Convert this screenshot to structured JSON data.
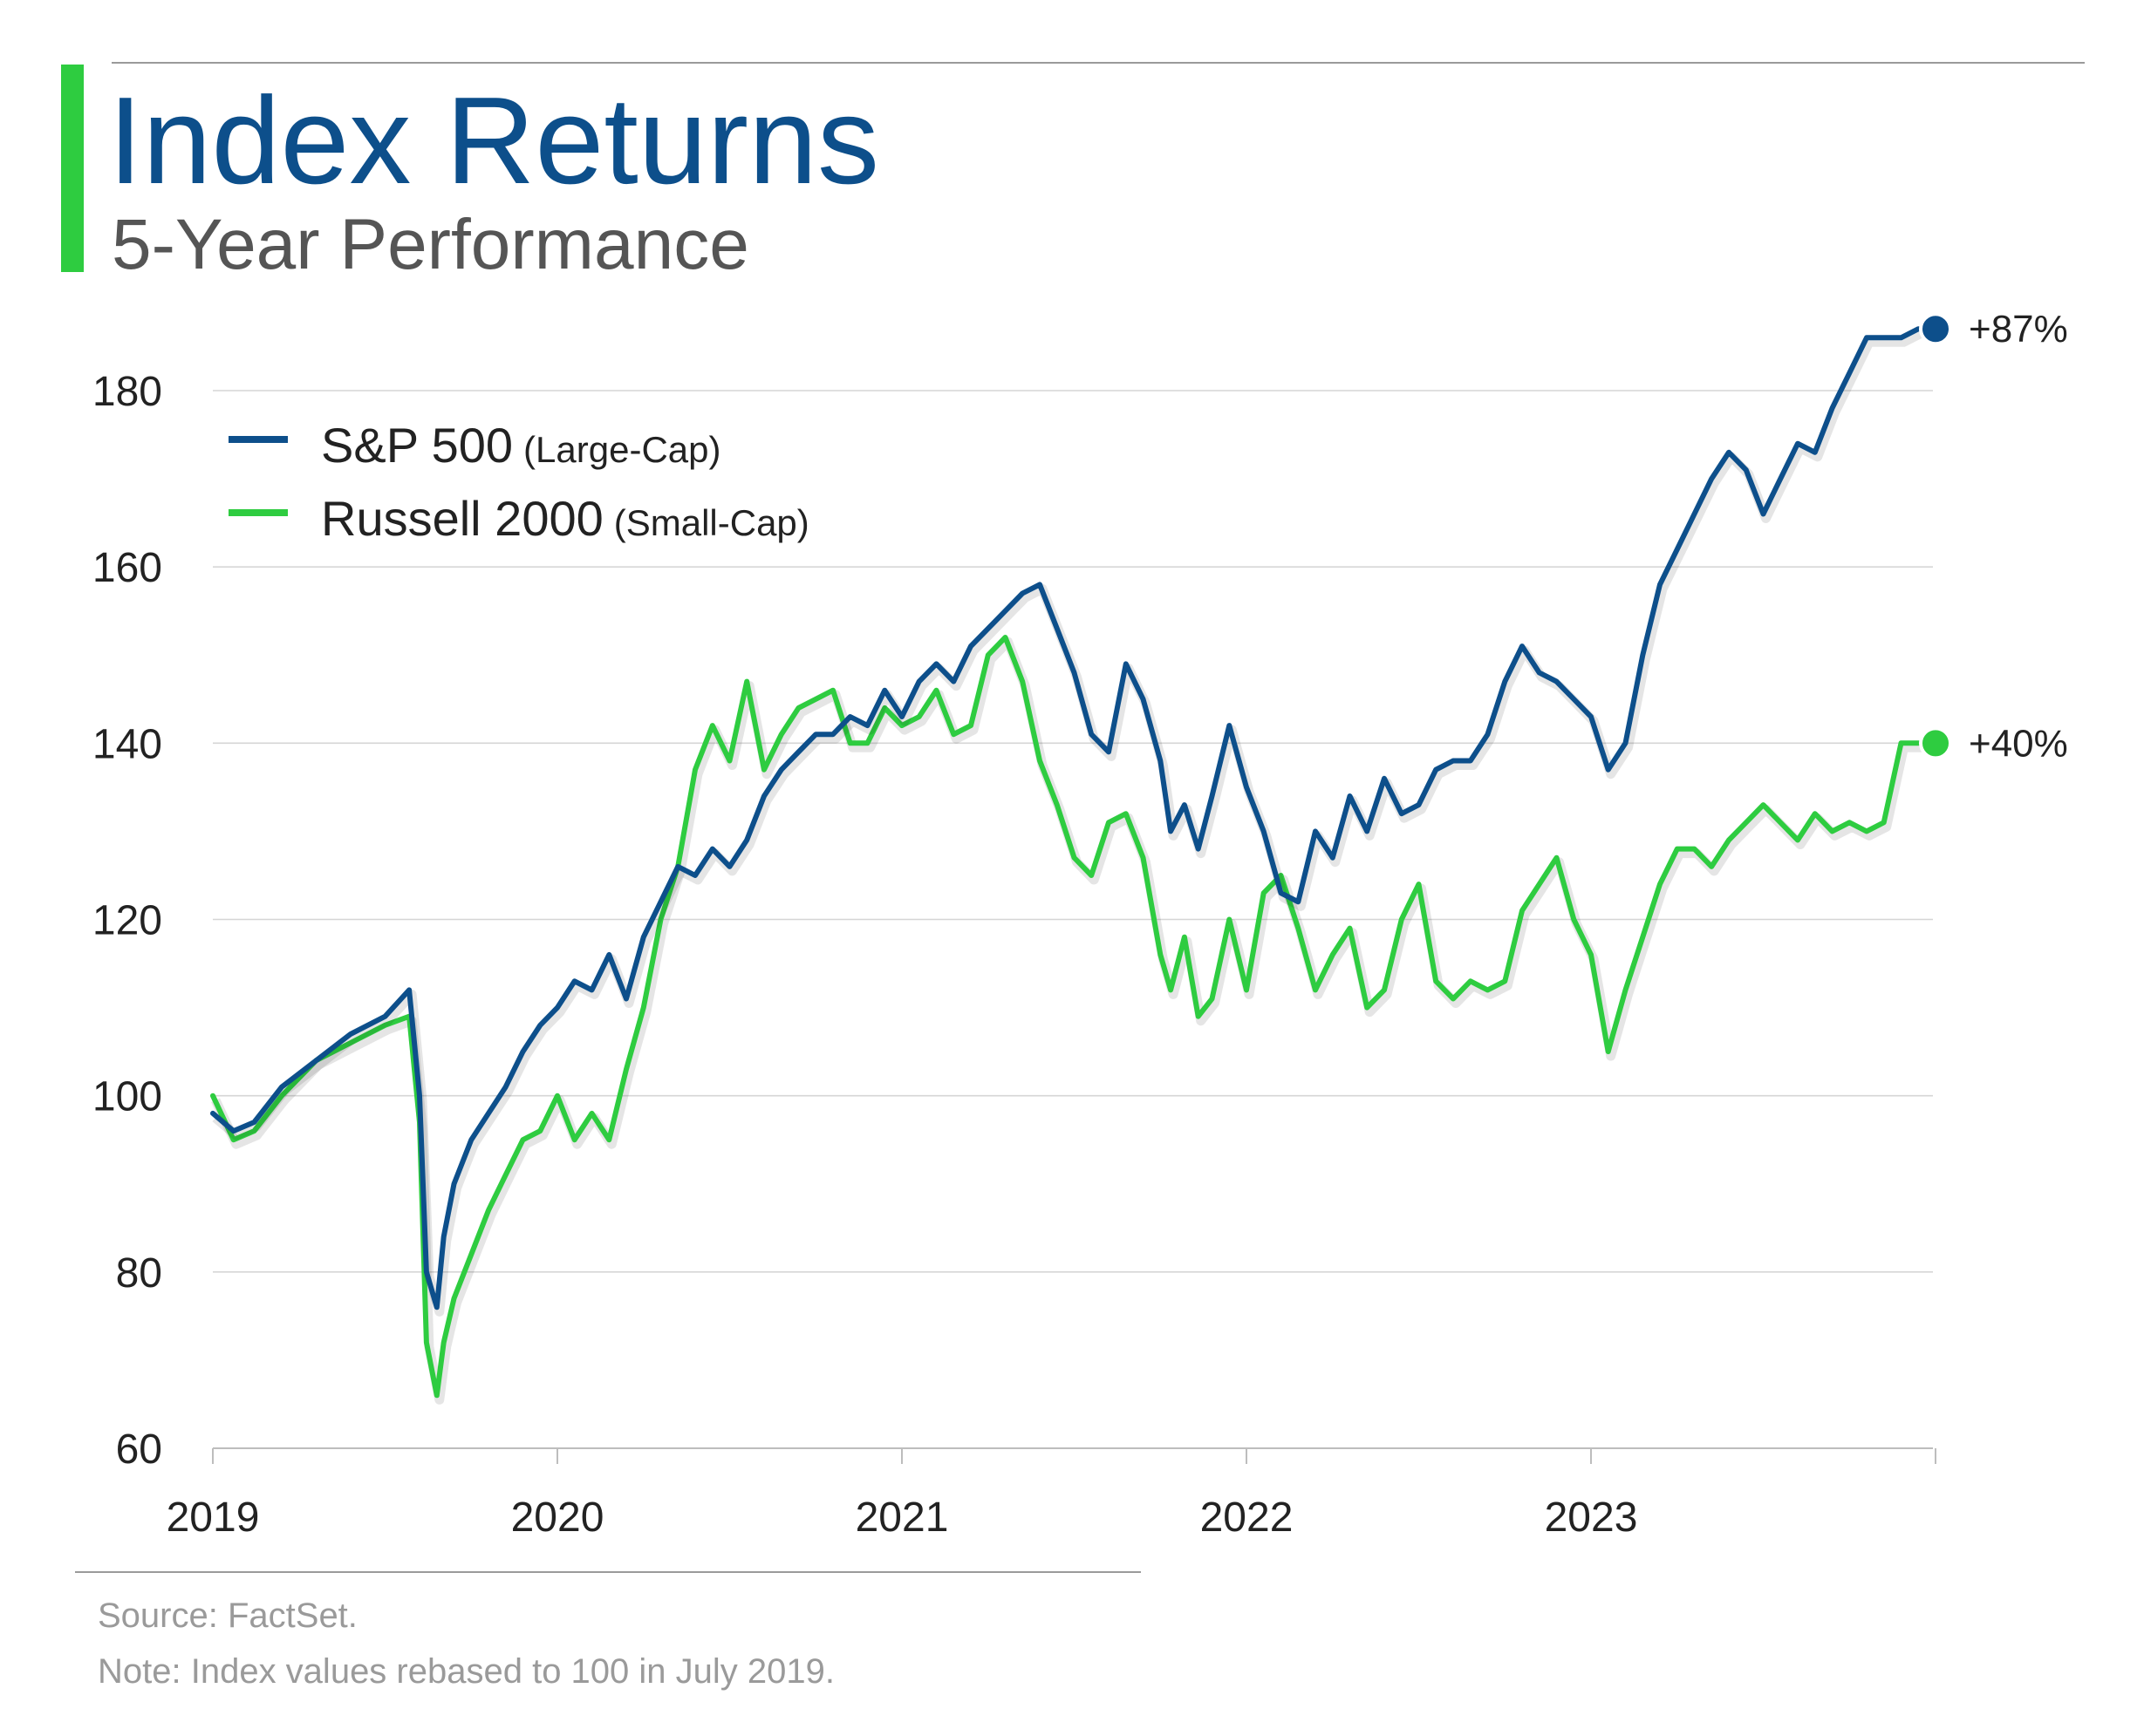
{
  "header": {
    "title": "Index Returns",
    "subtitle": "5-Year Performance",
    "accent_color": "#2ecc40",
    "title_color": "#0d4f8b"
  },
  "footer": {
    "source": "Source: FactSet.",
    "note": "Note: Index values rebased to 100 in July 2019."
  },
  "chart_data": {
    "type": "line",
    "title": "Index Returns",
    "subtitle": "5-Year Performance",
    "ylim": [
      60,
      190
    ],
    "xlim": [
      2019.0,
      2024.0
    ],
    "yticks": [
      60,
      80,
      100,
      120,
      140,
      160,
      180
    ],
    "xticks": [
      2019,
      2020,
      2021,
      2022,
      2023
    ],
    "grid": "horizontal",
    "legend_position": "top-left",
    "series": [
      {
        "name": "S&P 500",
        "name_detail": "(Large-Cap)",
        "color": "#0d4f8b",
        "end_label": "+87%",
        "x": [
          2019.0,
          2019.06,
          2019.12,
          2019.2,
          2019.3,
          2019.4,
          2019.5,
          2019.57,
          2019.6,
          2019.62,
          2019.65,
          2019.67,
          2019.7,
          2019.75,
          2019.8,
          2019.85,
          2019.9,
          2019.95,
          2020.0,
          2020.05,
          2020.1,
          2020.15,
          2020.2,
          2020.25,
          2020.3,
          2020.35,
          2020.4,
          2020.45,
          2020.5,
          2020.55,
          2020.6,
          2020.65,
          2020.7,
          2020.75,
          2020.8,
          2020.85,
          2020.9,
          2020.95,
          2021.0,
          2021.05,
          2021.1,
          2021.15,
          2021.2,
          2021.25,
          2021.3,
          2021.35,
          2021.4,
          2021.45,
          2021.5,
          2021.55,
          2021.6,
          2021.65,
          2021.7,
          2021.75,
          2021.78,
          2021.82,
          2021.86,
          2021.9,
          2021.95,
          2022.0,
          2022.05,
          2022.1,
          2022.15,
          2022.2,
          2022.25,
          2022.3,
          2022.35,
          2022.4,
          2022.45,
          2022.5,
          2022.55,
          2022.6,
          2022.65,
          2022.7,
          2022.75,
          2022.8,
          2022.85,
          2022.9,
          2022.95,
          2023.0,
          2023.05,
          2023.1,
          2023.15,
          2023.2,
          2023.25,
          2023.3,
          2023.35,
          2023.4,
          2023.45,
          2023.5,
          2023.55,
          2023.6,
          2023.65,
          2023.7,
          2023.75,
          2023.8,
          2023.85,
          2023.9,
          2023.95,
          2024.0
        ],
        "values": [
          98,
          96,
          97,
          101,
          104,
          107,
          109,
          112,
          100,
          80,
          76,
          84,
          90,
          95,
          98,
          101,
          105,
          108,
          110,
          113,
          112,
          116,
          111,
          118,
          122,
          126,
          125,
          128,
          126,
          129,
          134,
          137,
          139,
          141,
          141,
          143,
          142,
          146,
          143,
          147,
          149,
          147,
          151,
          153,
          155,
          157,
          158,
          153,
          148,
          141,
          139,
          149,
          145,
          138,
          130,
          133,
          128,
          134,
          142,
          135,
          130,
          123,
          122,
          130,
          127,
          134,
          130,
          136,
          132,
          133,
          137,
          138,
          138,
          141,
          147,
          151,
          148,
          147,
          145,
          143,
          137,
          140,
          150,
          158,
          162,
          166,
          170,
          173,
          171,
          166,
          170,
          174,
          173,
          178,
          182,
          186,
          186,
          186,
          187,
          187
        ],
        "end_value": 187
      },
      {
        "name": "Russell 2000",
        "name_detail": "(Small-Cap)",
        "color": "#2ecc40",
        "end_label": "+40%",
        "x": [
          2019.0,
          2019.06,
          2019.12,
          2019.2,
          2019.3,
          2019.4,
          2019.5,
          2019.57,
          2019.6,
          2019.62,
          2019.65,
          2019.67,
          2019.7,
          2019.75,
          2019.8,
          2019.85,
          2019.9,
          2019.95,
          2020.0,
          2020.05,
          2020.1,
          2020.15,
          2020.2,
          2020.25,
          2020.3,
          2020.35,
          2020.4,
          2020.45,
          2020.5,
          2020.55,
          2020.6,
          2020.65,
          2020.7,
          2020.75,
          2020.8,
          2020.85,
          2020.9,
          2020.95,
          2021.0,
          2021.05,
          2021.1,
          2021.15,
          2021.2,
          2021.25,
          2021.3,
          2021.35,
          2021.4,
          2021.45,
          2021.5,
          2021.55,
          2021.6,
          2021.65,
          2021.7,
          2021.75,
          2021.78,
          2021.82,
          2021.86,
          2021.9,
          2021.95,
          2022.0,
          2022.05,
          2022.1,
          2022.15,
          2022.2,
          2022.25,
          2022.3,
          2022.35,
          2022.4,
          2022.45,
          2022.5,
          2022.55,
          2022.6,
          2022.65,
          2022.7,
          2022.75,
          2022.8,
          2022.85,
          2022.9,
          2022.95,
          2023.0,
          2023.05,
          2023.1,
          2023.15,
          2023.2,
          2023.25,
          2023.3,
          2023.35,
          2023.4,
          2023.45,
          2023.5,
          2023.55,
          2023.6,
          2023.65,
          2023.7,
          2023.75,
          2023.8,
          2023.85,
          2023.9,
          2023.95,
          2024.0
        ],
        "values": [
          100,
          95,
          96,
          100,
          104,
          106,
          108,
          109,
          97,
          72,
          66,
          72,
          77,
          82,
          87,
          91,
          95,
          96,
          100,
          95,
          98,
          95,
          103,
          110,
          120,
          126,
          137,
          142,
          138,
          147,
          137,
          141,
          144,
          145,
          146,
          140,
          140,
          144,
          142,
          143,
          146,
          141,
          142,
          150,
          152,
          147,
          138,
          133,
          127,
          125,
          131,
          132,
          127,
          116,
          112,
          118,
          109,
          111,
          120,
          112,
          123,
          125,
          119,
          112,
          116,
          119,
          110,
          112,
          120,
          124,
          113,
          111,
          113,
          112,
          113,
          121,
          124,
          127,
          120,
          116,
          105,
          112,
          118,
          124,
          128,
          128,
          126,
          129,
          131,
          133,
          131,
          129,
          132,
          130,
          131,
          130,
          131,
          140,
          140,
          140
        ],
        "end_value": 140
      }
    ]
  }
}
